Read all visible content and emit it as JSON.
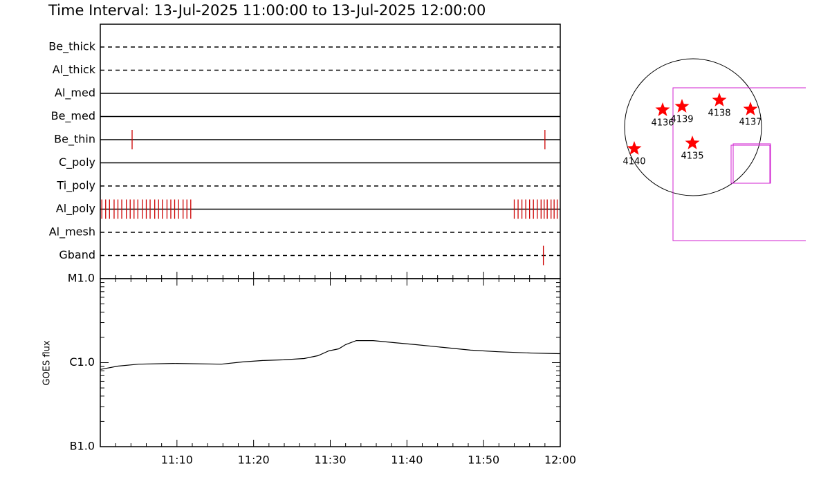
{
  "title": "Time Interval: 13-Jul-2025 11:00:00 to 13-Jul-2025 12:00:00",
  "chart_data": [
    {
      "type": "timeline",
      "xlim": [
        0,
        60
      ],
      "line_color": "#000000",
      "event_color": "#cc0000",
      "rows": [
        {
          "name": "Be_thick",
          "dashed": true,
          "events": []
        },
        {
          "name": "Al_thick",
          "dashed": true,
          "events": []
        },
        {
          "name": "Al_med",
          "dashed": false,
          "events": []
        },
        {
          "name": "Be_med",
          "dashed": false,
          "events": []
        },
        {
          "name": "Be_thin",
          "dashed": false,
          "events": [
            4.15,
            58.0
          ]
        },
        {
          "name": "C_poly",
          "dashed": false,
          "events": []
        },
        {
          "name": "Ti_poly",
          "dashed": true,
          "events": []
        },
        {
          "name": "Al_poly",
          "dashed": false,
          "events": [
            0.2,
            0.7,
            1.2,
            1.8,
            2.3,
            2.8,
            3.4,
            3.9,
            4.4,
            4.9,
            5.5,
            6.0,
            6.5,
            7.1,
            7.6,
            8.1,
            8.7,
            9.2,
            9.7,
            10.2,
            10.8,
            11.3,
            11.8,
            54.0,
            54.5,
            55.0,
            55.5,
            56.0,
            56.5,
            57.0,
            57.5,
            57.9,
            58.3,
            58.8,
            59.2,
            59.6
          ]
        },
        {
          "name": "Al_mesh",
          "dashed": true,
          "events": []
        },
        {
          "name": "Gband",
          "dashed": true,
          "events": [
            57.8
          ]
        }
      ]
    },
    {
      "type": "line",
      "ylabel": "GOES flux",
      "log_y": true,
      "color": "#000000",
      "xlim": [
        0,
        60
      ],
      "xticks": [
        {
          "value": 10,
          "label": "11:10"
        },
        {
          "value": 20,
          "label": "11:20"
        },
        {
          "value": 30,
          "label": "11:30"
        },
        {
          "value": 40,
          "label": "11:40"
        },
        {
          "value": 50,
          "label": "11:50"
        },
        {
          "value": 60,
          "label": "12:00"
        }
      ],
      "ylim": [
        1e-07,
        1e-05
      ],
      "yticks": [
        {
          "value": 1e-07,
          "label": "B1.0"
        },
        {
          "value": 1e-06,
          "label": "C1.0"
        },
        {
          "value": 1e-05,
          "label": "M1.0"
        }
      ],
      "x": [
        0,
        2.3,
        5.0,
        9.5,
        15.8,
        18.5,
        21.2,
        23.9,
        26.6,
        28.4,
        29.8,
        31.1,
        32.0,
        33.4,
        35.6,
        38.4,
        41.1,
        44.7,
        48.3,
        51.9,
        56.4,
        60.0
      ],
      "values": [
        8.3e-07,
        9.1e-07,
        9.6e-07,
        9.8e-07,
        9.6e-07,
        1.02e-06,
        1.06e-06,
        1.08e-06,
        1.12e-06,
        1.21e-06,
        1.38e-06,
        1.46e-06,
        1.64e-06,
        1.83e-06,
        1.83e-06,
        1.73e-06,
        1.64e-06,
        1.52e-06,
        1.41e-06,
        1.35e-06,
        1.3e-06,
        1.28e-06
      ]
    }
  ],
  "map": {
    "regions": [
      "4136",
      "4139",
      "4138",
      "4137",
      "4135",
      "4140"
    ]
  }
}
